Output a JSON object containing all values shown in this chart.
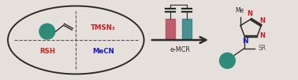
{
  "bg_color": "#e5e0db",
  "teal_color": "#2d8b78",
  "red_color": "#cc2020",
  "blue_color": "#1a1acc",
  "dark_color": "#2a2a2a",
  "gray_color": "#555555",
  "electrode_pink": "#b85060",
  "electrode_teal": "#3a8888",
  "text_TMSN3": "TMSN₃",
  "text_RSH": "RSH",
  "text_MeCN": "MeCN",
  "text_eMCR": "e-MCR",
  "text_Me": "Me",
  "text_SR": "SR"
}
